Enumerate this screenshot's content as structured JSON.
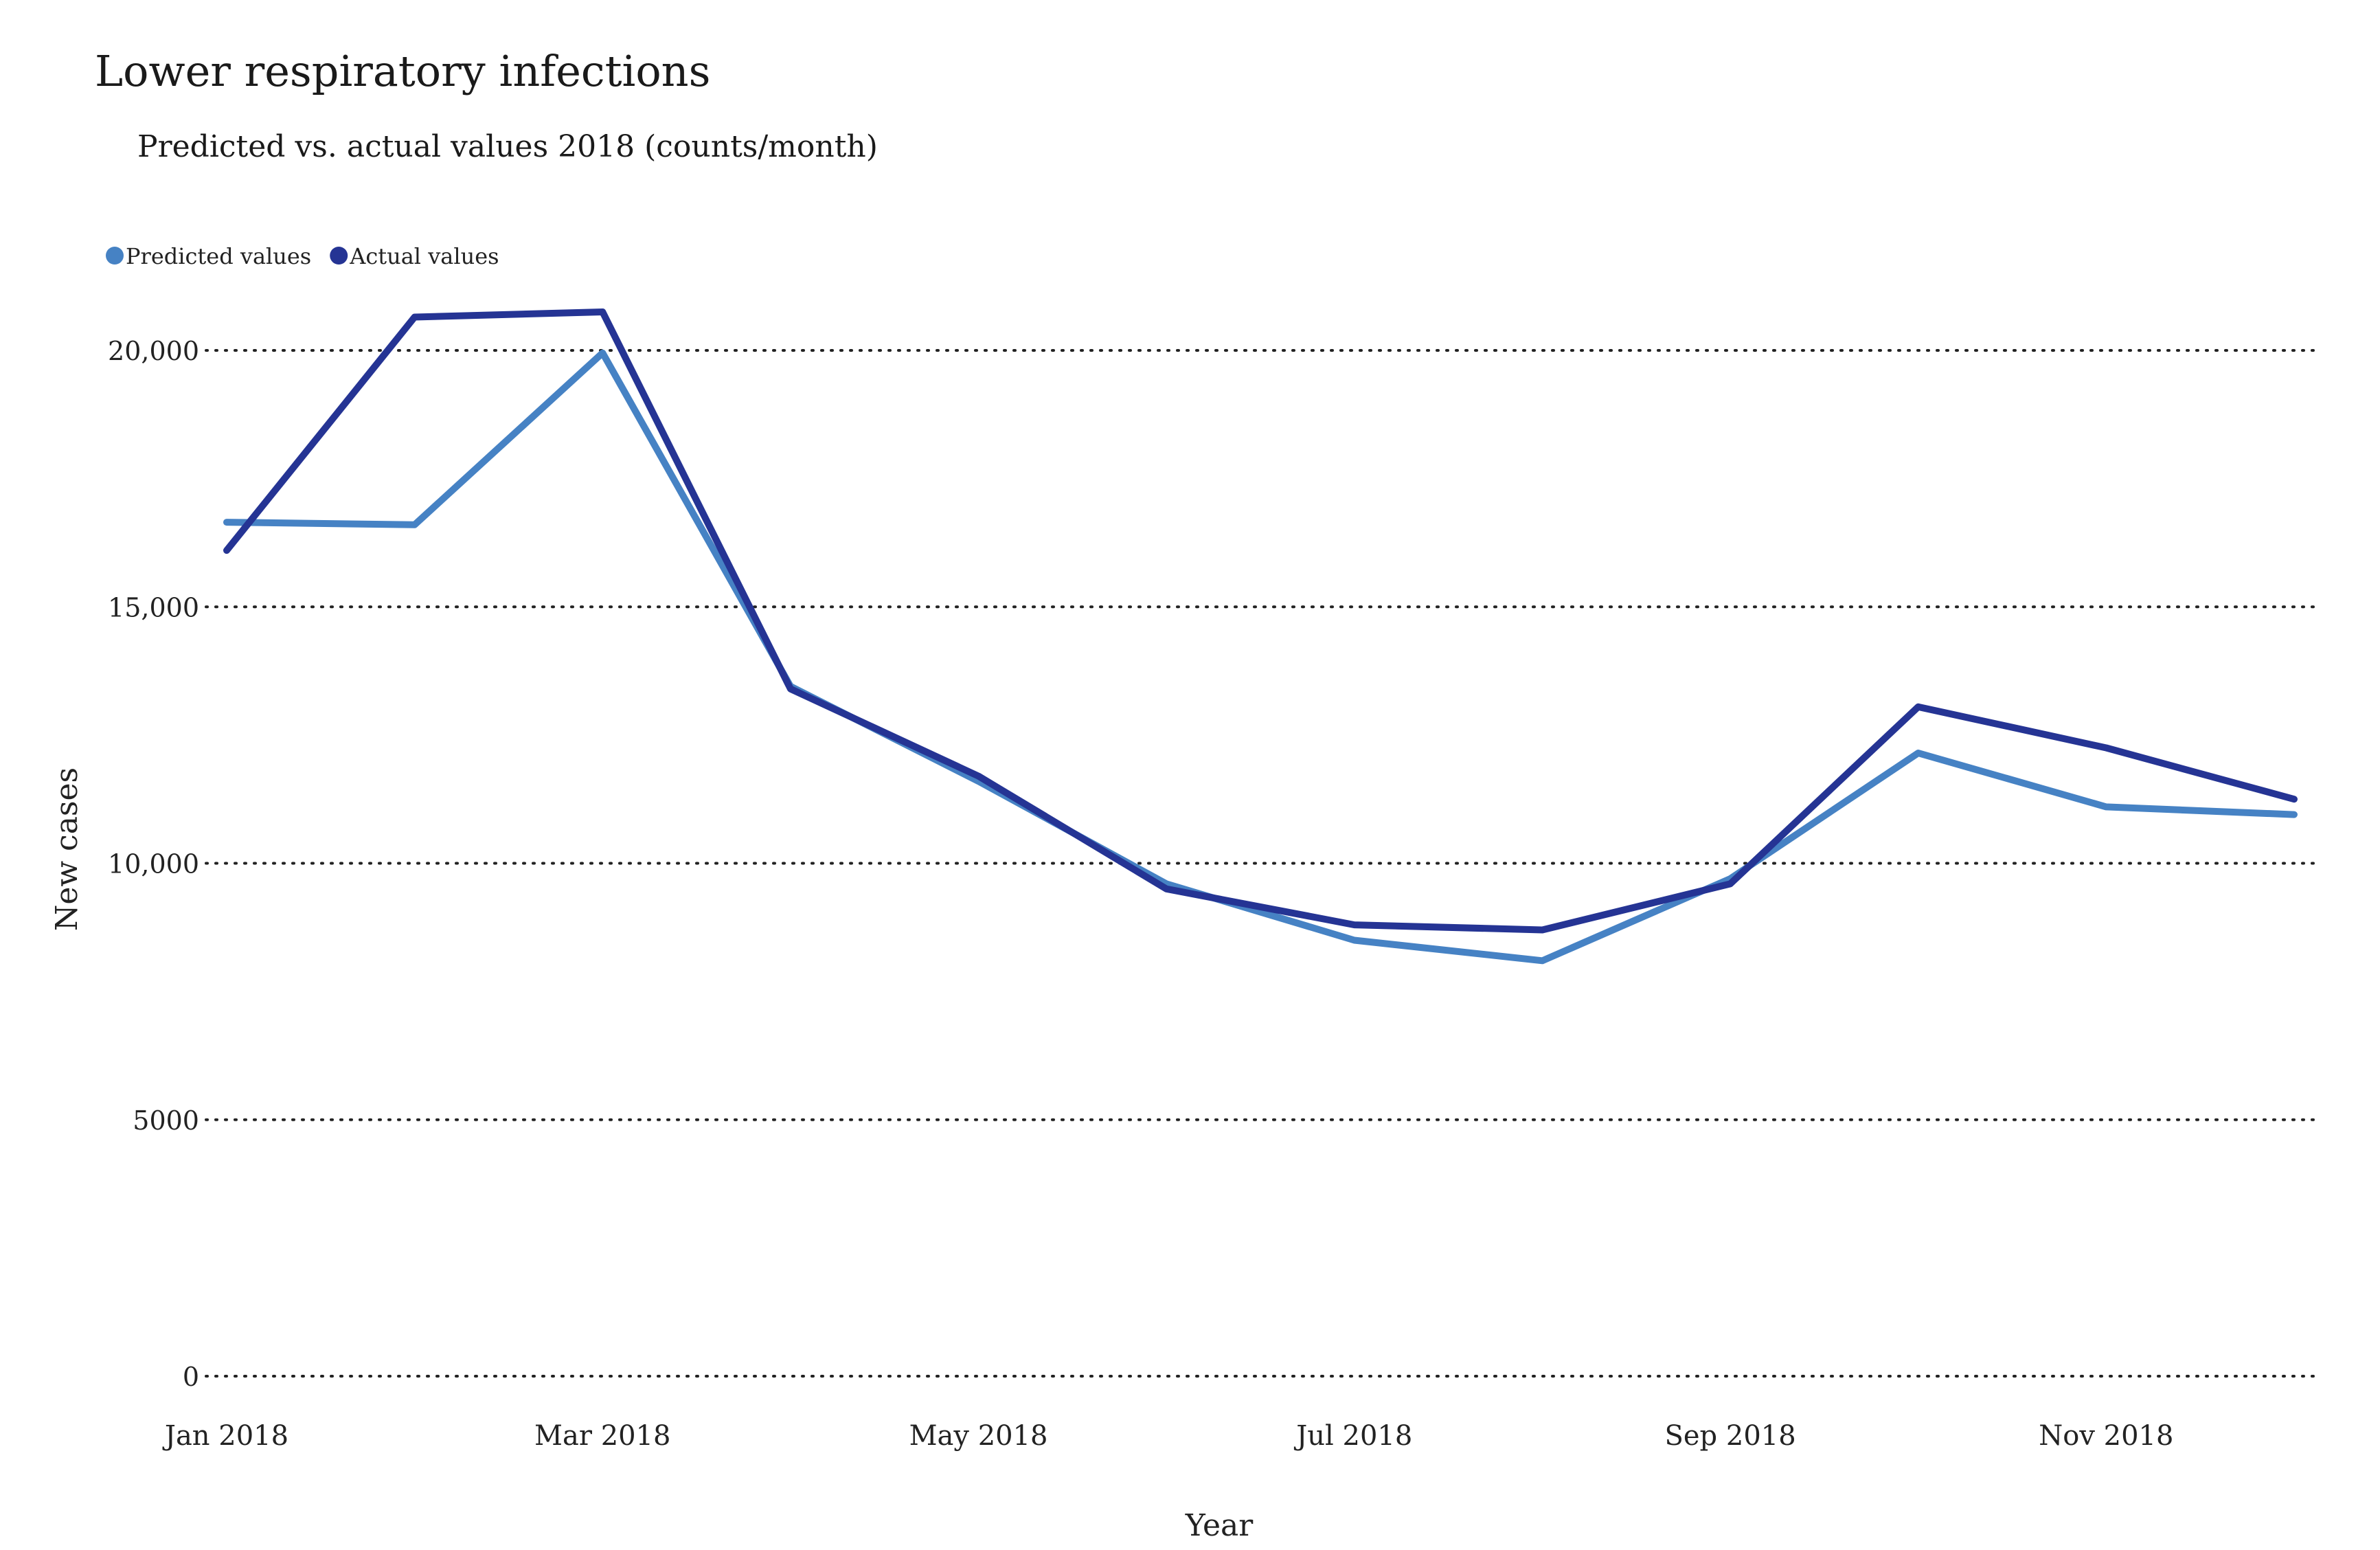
{
  "chart_data": {
    "type": "line",
    "title": "Lower respiratory infections",
    "subtitle": "Predicted vs. actual values 2018 (counts/month)",
    "xlabel": "Year",
    "ylabel": "New cases",
    "x": [
      "Jan 2018",
      "Feb 2018",
      "Mar 2018",
      "Apr 2018",
      "May 2018",
      "Jun 2018",
      "Jul 2018",
      "Aug 2018",
      "Sep 2018",
      "Oct 2018",
      "Nov 2018",
      "Dec 2018"
    ],
    "x_tick_labels": [
      "Jan 2018",
      "Mar 2018",
      "May 2018",
      "Jul 2018",
      "Sep 2018",
      "Nov 2018"
    ],
    "y_ticks": [
      0,
      5000,
      10000,
      15000,
      20000
    ],
    "y_tick_labels": [
      "0",
      "5000",
      "10,000",
      "15,000",
      "20,000"
    ],
    "ylim": [
      0,
      20800
    ],
    "grid": "horizontal dotted",
    "legend_position": "top-left",
    "series": [
      {
        "name": "Predicted values",
        "color": "#4682c4",
        "values": [
          16650,
          16600,
          19950,
          13450,
          11600,
          9600,
          8500,
          8100,
          9700,
          12150,
          11100,
          10950
        ]
      },
      {
        "name": "Actual values",
        "color": "#253494",
        "values": [
          16100,
          20650,
          20750,
          13400,
          11700,
          9500,
          8800,
          8700,
          9600,
          13050,
          12250,
          11250
        ]
      }
    ]
  }
}
